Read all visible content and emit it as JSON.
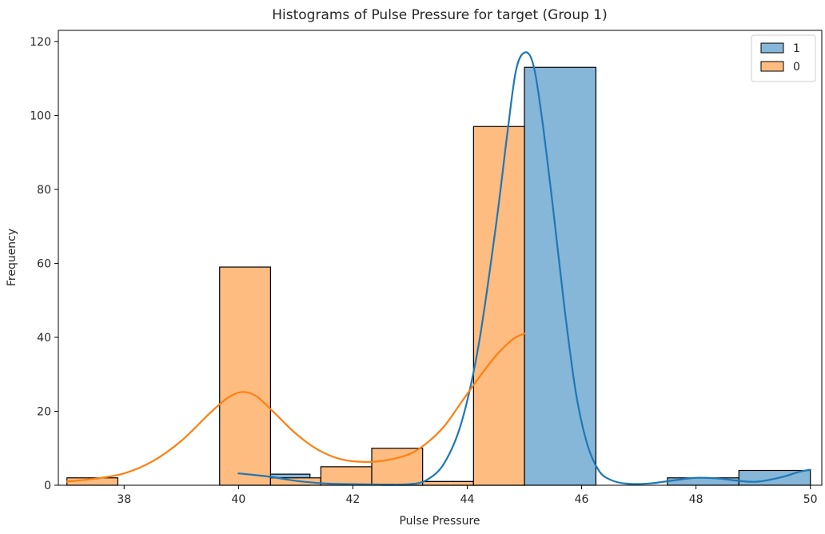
{
  "chart_data": {
    "type": "bar",
    "title": "Histograms of Pulse Pressure for target (Group 1)",
    "xlabel": "Pulse Pressure",
    "ylabel": "Frequency",
    "xlim": [
      36.85,
      50.2
    ],
    "ylim": [
      0,
      123
    ],
    "xticks": [
      38,
      40,
      42,
      44,
      46,
      48,
      50
    ],
    "yticks": [
      0,
      20,
      40,
      60,
      80,
      100,
      120
    ],
    "legend_position": "top-right",
    "series": [
      {
        "name": "1",
        "color": "#1f77b4",
        "bar_color": "#86b6d8",
        "bins": [
          {
            "x0": 40.0,
            "x1": 41.25,
            "value": 3
          },
          {
            "x0": 41.25,
            "x1": 42.5,
            "value": 0
          },
          {
            "x0": 42.5,
            "x1": 43.75,
            "value": 1
          },
          {
            "x0": 43.75,
            "x1": 45.0,
            "value": 1
          },
          {
            "x0": 45.0,
            "x1": 46.25,
            "value": 113
          },
          {
            "x0": 46.25,
            "x1": 47.5,
            "value": 0
          },
          {
            "x0": 47.5,
            "x1": 48.75,
            "value": 2
          },
          {
            "x0": 48.75,
            "x1": 50.0,
            "value": 4
          }
        ],
        "kde": [
          [
            40.0,
            3.2
          ],
          [
            40.5,
            2.4
          ],
          [
            41.0,
            1.2
          ],
          [
            41.5,
            0.5
          ],
          [
            42.0,
            0.3
          ],
          [
            42.5,
            0.2
          ],
          [
            43.0,
            0.3
          ],
          [
            43.3,
            1.5
          ],
          [
            43.6,
            6
          ],
          [
            43.9,
            17
          ],
          [
            44.2,
            38
          ],
          [
            44.5,
            70
          ],
          [
            44.7,
            95
          ],
          [
            44.85,
            112
          ],
          [
            45.0,
            117
          ],
          [
            45.15,
            114
          ],
          [
            45.3,
            100
          ],
          [
            45.5,
            75
          ],
          [
            45.7,
            48
          ],
          [
            45.9,
            25
          ],
          [
            46.1,
            11
          ],
          [
            46.3,
            4
          ],
          [
            46.5,
            1.5
          ],
          [
            46.8,
            0.4
          ],
          [
            47.2,
            0.5
          ],
          [
            47.6,
            1.3
          ],
          [
            48.0,
            2.0
          ],
          [
            48.4,
            1.8
          ],
          [
            48.8,
            1.1
          ],
          [
            49.1,
            1.0
          ],
          [
            49.5,
            2.2
          ],
          [
            49.8,
            3.6
          ],
          [
            50.0,
            4.2
          ]
        ]
      },
      {
        "name": "0",
        "color": "#ff7f0e",
        "bar_color": "#ffbc80",
        "bins": [
          {
            "x0": 37.0,
            "x1": 37.89,
            "value": 2
          },
          {
            "x0": 37.89,
            "x1": 38.78,
            "value": 0
          },
          {
            "x0": 38.78,
            "x1": 39.67,
            "value": 0
          },
          {
            "x0": 39.67,
            "x1": 40.56,
            "value": 59
          },
          {
            "x0": 40.56,
            "x1": 41.44,
            "value": 2
          },
          {
            "x0": 41.44,
            "x1": 42.33,
            "value": 5
          },
          {
            "x0": 42.33,
            "x1": 43.22,
            "value": 10
          },
          {
            "x0": 43.22,
            "x1": 44.11,
            "value": 1
          },
          {
            "x0": 44.11,
            "x1": 45.0,
            "value": 97
          }
        ],
        "kde": [
          [
            37.0,
            1.0
          ],
          [
            37.5,
            1.8
          ],
          [
            38.0,
            3.2
          ],
          [
            38.5,
            6.5
          ],
          [
            39.0,
            12
          ],
          [
            39.5,
            19.5
          ],
          [
            39.8,
            23.5
          ],
          [
            40.05,
            25.2
          ],
          [
            40.3,
            24.2
          ],
          [
            40.6,
            20
          ],
          [
            41.0,
            14
          ],
          [
            41.4,
            9.5
          ],
          [
            41.8,
            7
          ],
          [
            42.2,
            6.3
          ],
          [
            42.6,
            6.8
          ],
          [
            43.0,
            8.5
          ],
          [
            43.3,
            11.5
          ],
          [
            43.6,
            16
          ],
          [
            43.9,
            22.5
          ],
          [
            44.2,
            29
          ],
          [
            44.5,
            35
          ],
          [
            44.8,
            39.5
          ],
          [
            45.0,
            41
          ]
        ]
      }
    ]
  }
}
